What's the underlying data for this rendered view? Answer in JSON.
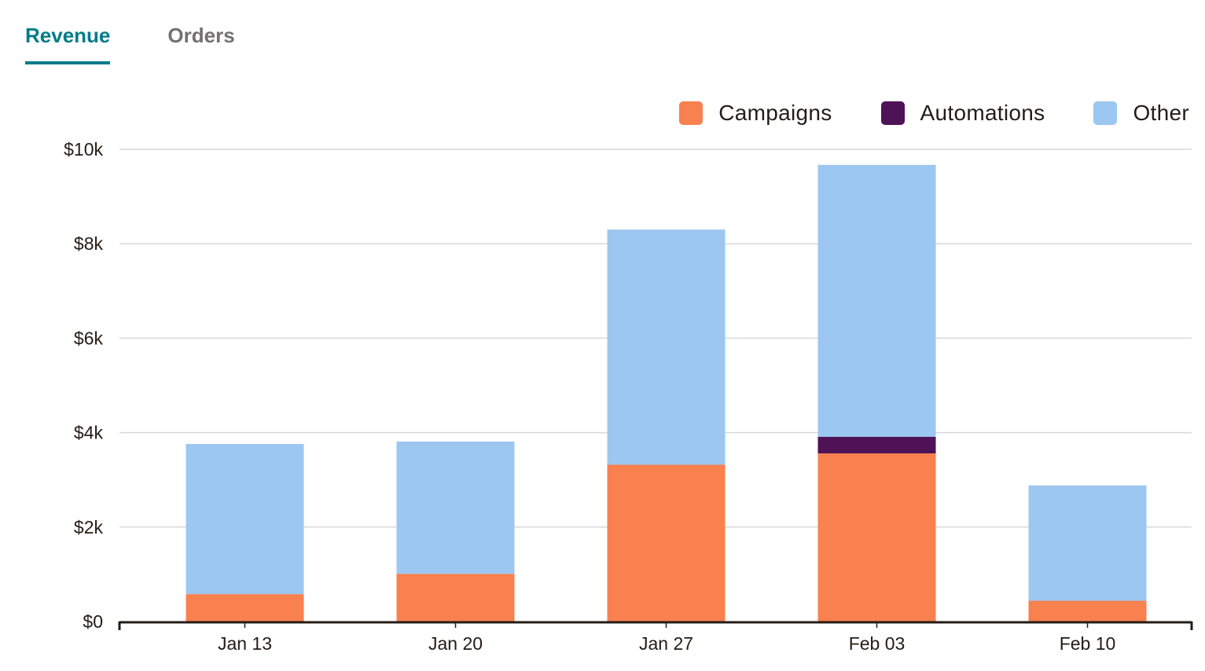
{
  "tabs": [
    {
      "label": "Revenue",
      "active": true
    },
    {
      "label": "Orders",
      "active": false
    }
  ],
  "chart_data": {
    "type": "bar",
    "stacked": true,
    "categories": [
      "Jan 13",
      "Jan 20",
      "Jan 27",
      "Feb 03",
      "Feb 10"
    ],
    "series": [
      {
        "name": "Campaigns",
        "color": "#f9804f",
        "values": [
          580,
          1010,
          3320,
          3560,
          440
        ]
      },
      {
        "name": "Automations",
        "color": "#4f1257",
        "values": [
          0,
          0,
          0,
          350,
          0
        ]
      },
      {
        "name": "Other",
        "color": "#9cc7f0",
        "values": [
          3180,
          2800,
          4980,
          5760,
          2440
        ]
      }
    ],
    "ylim": [
      0,
      10000
    ],
    "yticks": [
      "$0",
      "$2k",
      "$4k",
      "$6k",
      "$8k",
      "$10k"
    ],
    "ytick_values": [
      0,
      2000,
      4000,
      6000,
      8000,
      10000
    ],
    "grid": true,
    "legend_position": "top-right",
    "title": "",
    "xlabel": "",
    "ylabel": ""
  }
}
